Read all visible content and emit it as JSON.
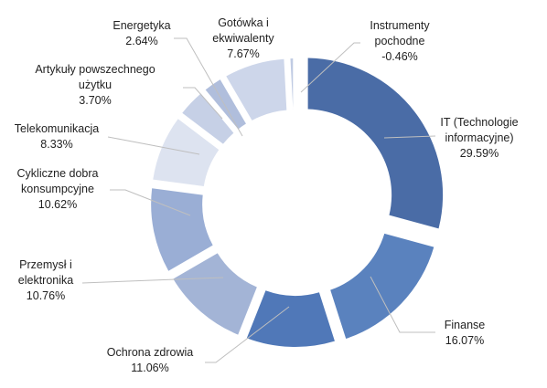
{
  "chart_data": {
    "type": "donut",
    "title": "",
    "start_angle_deg": 0,
    "slices": [
      {
        "label": [
          "IT (Technologie",
          "informacyjne)"
        ],
        "value_label": "29.59%",
        "value": 29.59,
        "color": "#4a6ca6"
      },
      {
        "label": [
          "Finanse"
        ],
        "value_label": "16.07%",
        "value": 16.07,
        "color": "#5a82be"
      },
      {
        "label": [
          "Ochrona zdrowia"
        ],
        "value_label": "11.06%",
        "value": 11.06,
        "color": "#5078b8"
      },
      {
        "label": [
          "Przemysł i",
          "elektronika"
        ],
        "value_label": "10.76%",
        "value": 10.76,
        "color": "#a3b4d6"
      },
      {
        "label": [
          "Cykliczne dobra",
          "konsumpcyjne"
        ],
        "value_label": "10.62%",
        "value": 10.62,
        "color": "#9aaed5"
      },
      {
        "label": [
          "Telekomunikacja"
        ],
        "value_label": "8.33%",
        "value": 8.33,
        "color": "#dde3f0"
      },
      {
        "label": [
          "Artykuły powszechnego",
          "użytku"
        ],
        "value_label": "3.70%",
        "value": 3.7,
        "color": "#c6d0e6"
      },
      {
        "label": [
          "Energetyka"
        ],
        "value_label": "2.64%",
        "value": 2.64,
        "color": "#b0bedc"
      },
      {
        "label": [
          "Gotówka i",
          "ekwiwalenty"
        ],
        "value_label": "7.67%",
        "value": 7.67,
        "color": "#cdd6ea"
      },
      {
        "label": [
          "Instrumenty",
          "pochodne"
        ],
        "value_label": "-0.46%",
        "value": -0.46,
        "color": "#c0cbe3"
      }
    ]
  }
}
